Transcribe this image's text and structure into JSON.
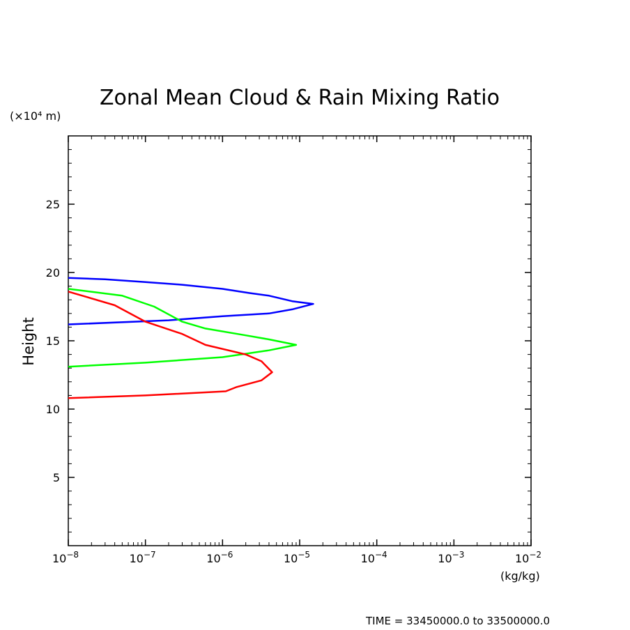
{
  "chart_data": {
    "type": "line",
    "title": "Zonal Mean Cloud & Rain Mixing Ratio",
    "ylabel": "Height",
    "y_unit": "(×10⁴ m)",
    "x_unit": "(kg/kg)",
    "xscale": "log",
    "xlim": [
      1e-08,
      0.01
    ],
    "ylim": [
      0,
      30
    ],
    "x_ticks": [
      {
        "value": 1e-08,
        "mant": "10",
        "exp": "−8"
      },
      {
        "value": 1e-07,
        "mant": "10",
        "exp": "−7"
      },
      {
        "value": 1e-06,
        "mant": "10",
        "exp": "−6"
      },
      {
        "value": 1e-05,
        "mant": "10",
        "exp": "−5"
      },
      {
        "value": 0.0001,
        "mant": "10",
        "exp": "−4"
      },
      {
        "value": 0.001,
        "mant": "10",
        "exp": "−3"
      },
      {
        "value": 0.01,
        "mant": "10",
        "exp": "−2"
      }
    ],
    "y_ticks": [
      {
        "value": 5,
        "label": "5"
      },
      {
        "value": 10,
        "label": "10"
      },
      {
        "value": 15,
        "label": "15"
      },
      {
        "value": 20,
        "label": "20"
      },
      {
        "value": 25,
        "label": "25"
      }
    ],
    "grid": false,
    "series": [
      {
        "color": "#0000ff",
        "points": [
          [
            1e-08,
            19.6
          ],
          [
            3e-08,
            19.5
          ],
          [
            1e-07,
            19.3
          ],
          [
            3e-07,
            19.1
          ],
          [
            1e-06,
            18.8
          ],
          [
            2.2e-06,
            18.5
          ],
          [
            4e-06,
            18.3
          ],
          [
            8e-06,
            17.9
          ],
          [
            1.5e-05,
            17.7
          ],
          [
            8e-06,
            17.3
          ],
          [
            4e-06,
            17.0
          ],
          [
            1e-06,
            16.8
          ],
          [
            2e-07,
            16.5
          ],
          [
            1e-08,
            16.2
          ]
        ]
      },
      {
        "color": "#00ff00",
        "points": [
          [
            1e-08,
            18.8
          ],
          [
            5e-08,
            18.3
          ],
          [
            1.3e-07,
            17.5
          ],
          [
            3e-07,
            16.4
          ],
          [
            6e-07,
            15.9
          ],
          [
            2e-06,
            15.4
          ],
          [
            4e-06,
            15.1
          ],
          [
            9e-06,
            14.7
          ],
          [
            4e-06,
            14.3
          ],
          [
            1e-06,
            13.8
          ],
          [
            1e-07,
            13.4
          ],
          [
            1e-08,
            13.1
          ]
        ]
      },
      {
        "color": "#ff0000",
        "points": [
          [
            1e-08,
            18.6
          ],
          [
            4e-08,
            17.6
          ],
          [
            1e-07,
            16.4
          ],
          [
            3e-07,
            15.5
          ],
          [
            6e-07,
            14.7
          ],
          [
            2e-06,
            14.0
          ],
          [
            3.2e-06,
            13.5
          ],
          [
            4.4e-06,
            12.7
          ],
          [
            3.2e-06,
            12.1
          ],
          [
            1.5e-06,
            11.6
          ],
          [
            1.1e-06,
            11.3
          ],
          [
            1e-07,
            11.0
          ],
          [
            1e-08,
            10.8
          ]
        ]
      }
    ]
  },
  "footer": {
    "time_range": "TIME = 33450000.0 to 33500000.0"
  }
}
